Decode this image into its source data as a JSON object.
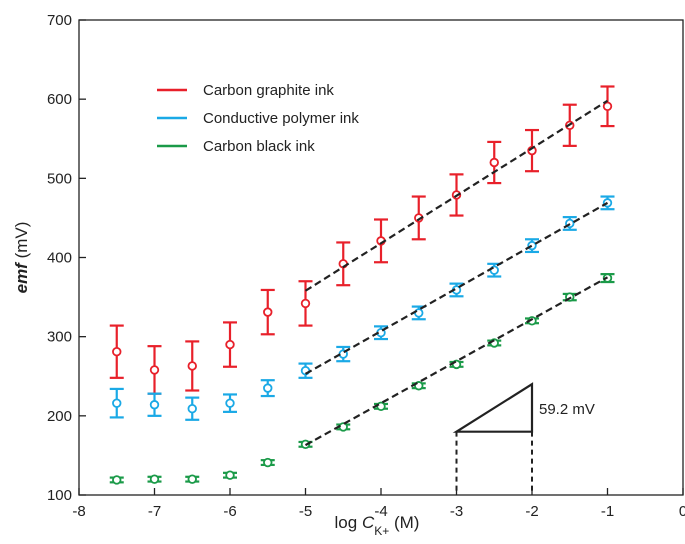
{
  "chart_data": {
    "type": "scatter",
    "xlabel": {
      "pre": "log ",
      "var": "C",
      "sub": "K+",
      "post": " (M)"
    },
    "ylabel": {
      "em": "emf",
      "post": " (mV)"
    },
    "xlim": [
      -8,
      0
    ],
    "ylim": [
      100,
      700
    ],
    "xticks": [
      -8,
      -7,
      -6,
      -5,
      -4,
      -3,
      -2,
      -1,
      0
    ],
    "yticks": [
      100,
      200,
      300,
      400,
      500,
      600,
      700
    ],
    "x": [
      -7.5,
      -7,
      -6.5,
      -6,
      -5.5,
      -5,
      -4.5,
      -4,
      -3.5,
      -3,
      -2.5,
      -2,
      -1.5,
      -1
    ],
    "grid": false,
    "legend_position": "top-left",
    "series": [
      {
        "name": "Carbon graphite ink",
        "color": "#e8202a",
        "y": [
          281,
          258,
          263,
          290,
          331,
          342,
          392,
          421,
          450,
          479,
          520,
          535,
          567,
          591
        ],
        "err": [
          33,
          30,
          31,
          28,
          28,
          28,
          27,
          27,
          27,
          26,
          26,
          26,
          26,
          25
        ],
        "fit": {
          "x": [
            -5,
            -1
          ],
          "y": [
            358,
            598
          ]
        }
      },
      {
        "name": "Conductive polymer ink",
        "color": "#1aa9e6",
        "y": [
          216,
          214,
          209,
          216,
          235,
          257,
          278,
          305,
          330,
          359,
          384,
          415,
          443,
          469
        ],
        "err": [
          18,
          14,
          14,
          11,
          10,
          9,
          9,
          8,
          8,
          8,
          8,
          8,
          8,
          8
        ],
        "fit": {
          "x": [
            -5,
            -1
          ],
          "y": [
            253,
            469
          ]
        }
      },
      {
        "name": "Carbon black ink",
        "color": "#1a9a48",
        "y": [
          119,
          120,
          120,
          125,
          141,
          164,
          186,
          212,
          238,
          265,
          292,
          320,
          350,
          374
        ],
        "err": [
          3,
          3,
          3,
          3,
          3,
          3,
          3,
          3,
          3,
          3,
          3,
          3,
          4,
          5
        ],
        "fit": {
          "x": [
            -5,
            -1
          ],
          "y": [
            163,
            375
          ]
        }
      }
    ],
    "annotation": {
      "text": "59.2 mV",
      "triangle": {
        "x0": -3,
        "x1": -2,
        "y0": 180,
        "y1": 240
      },
      "drop_lines_to_axis": [
        -3,
        -2
      ]
    }
  }
}
